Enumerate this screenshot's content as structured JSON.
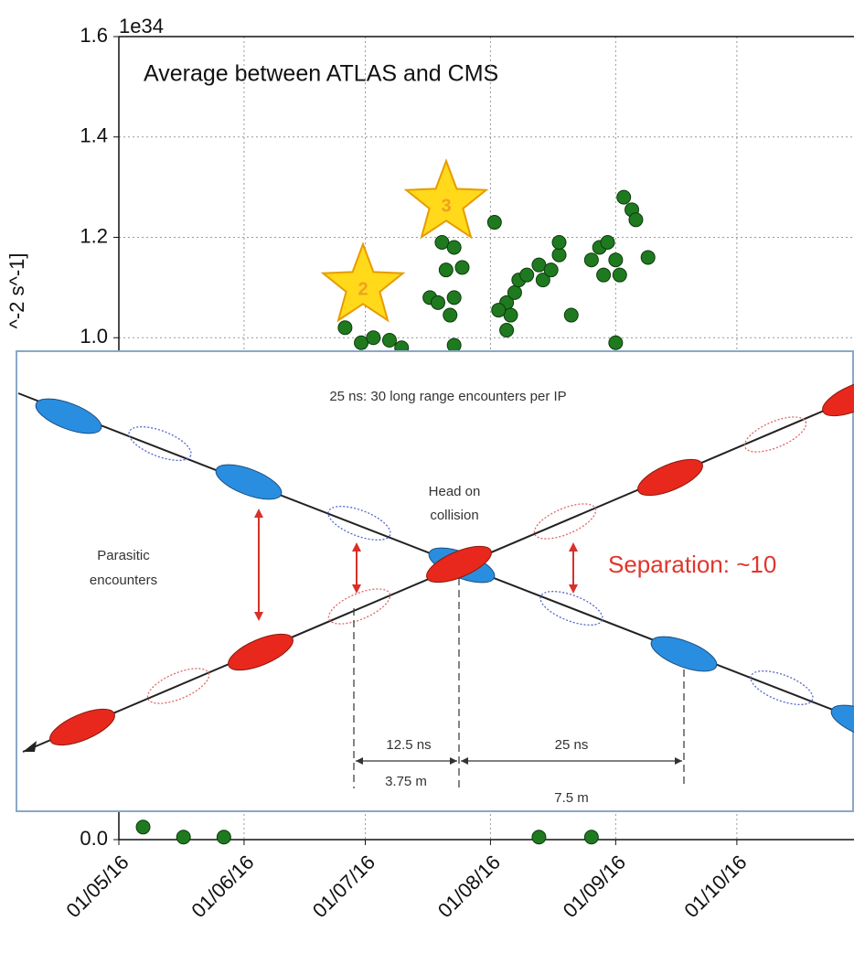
{
  "chart_data": {
    "type": "scatter",
    "annotation": "Average between ATLAS and CMS",
    "markers": [
      "2",
      "3"
    ],
    "offset_text": "1e34",
    "y_label": "^-2 s^-1]",
    "color": "#1f7a1f",
    "grid": true,
    "xlim": [
      "2016-05-01",
      "2016-10-30"
    ],
    "xticks": [
      {
        "value": "2016-05-01",
        "label": "01/05/16"
      },
      {
        "value": "2016-06-01",
        "label": "01/06/16"
      },
      {
        "value": "2016-07-01",
        "label": "01/07/16"
      },
      {
        "value": "2016-08-01",
        "label": "01/08/16"
      },
      {
        "value": "2016-09-01",
        "label": "01/09/16"
      },
      {
        "value": "2016-10-01",
        "label": "01/10/16"
      }
    ],
    "ylim": [
      0,
      1.6
    ],
    "yticks": [
      {
        "value": 0,
        "label": "0.0"
      },
      {
        "value": 1,
        "label": "1.0"
      },
      1.2,
      1.4,
      1.6
    ],
    "x": [
      "2016-06-26",
      "2016-06-30",
      "2016-07-03",
      "2016-07-07",
      "2016-07-10",
      "2016-07-20",
      "2016-07-23",
      "2016-07-21",
      "2016-07-25",
      "2016-07-17",
      "2016-07-19",
      "2016-07-23",
      "2016-07-22",
      "2016-07-23",
      "2016-08-02",
      "2016-08-05",
      "2016-08-06",
      "2016-08-07",
      "2016-08-08",
      "2016-08-10",
      "2016-08-13",
      "2016-08-14",
      "2016-08-16",
      "2016-08-18",
      "2016-08-18",
      "2016-08-21",
      "2016-08-26",
      "2016-08-28",
      "2016-08-29",
      "2016-08-30",
      "2016-09-01",
      "2016-09-01",
      "2016-09-02",
      "2016-09-03",
      "2016-09-05",
      "2016-09-06",
      "2016-09-09",
      "2016-08-05",
      "2016-08-03",
      "2016-05-07",
      "2016-05-17",
      "2016-05-27",
      "2016-08-13",
      "2016-08-26"
    ],
    "values": [
      1.02,
      0.99,
      1.0,
      0.995,
      0.98,
      1.19,
      1.18,
      1.135,
      1.14,
      1.08,
      1.07,
      1.08,
      1.045,
      0.985,
      1.23,
      1.07,
      1.045,
      1.09,
      1.115,
      1.125,
      1.145,
      1.115,
      1.135,
      1.165,
      1.19,
      1.045,
      1.155,
      1.18,
      1.125,
      1.19,
      0.99,
      1.155,
      1.125,
      1.28,
      1.255,
      1.235,
      1.16,
      1.015,
      1.055,
      0.025,
      0.005,
      0.005,
      0.005,
      0.005
    ]
  },
  "diagram": {
    "header": "25 ns: 30 long range encounters per IP",
    "head_on": [
      "Head on",
      "collision"
    ],
    "parasitic": [
      "Parasitic",
      "encounters"
    ],
    "separation": "Separation: ~10",
    "spacing_short": [
      "12.5 ns",
      "3.75 m"
    ],
    "spacing_long": [
      "25 ns",
      "7.5 m"
    ]
  }
}
